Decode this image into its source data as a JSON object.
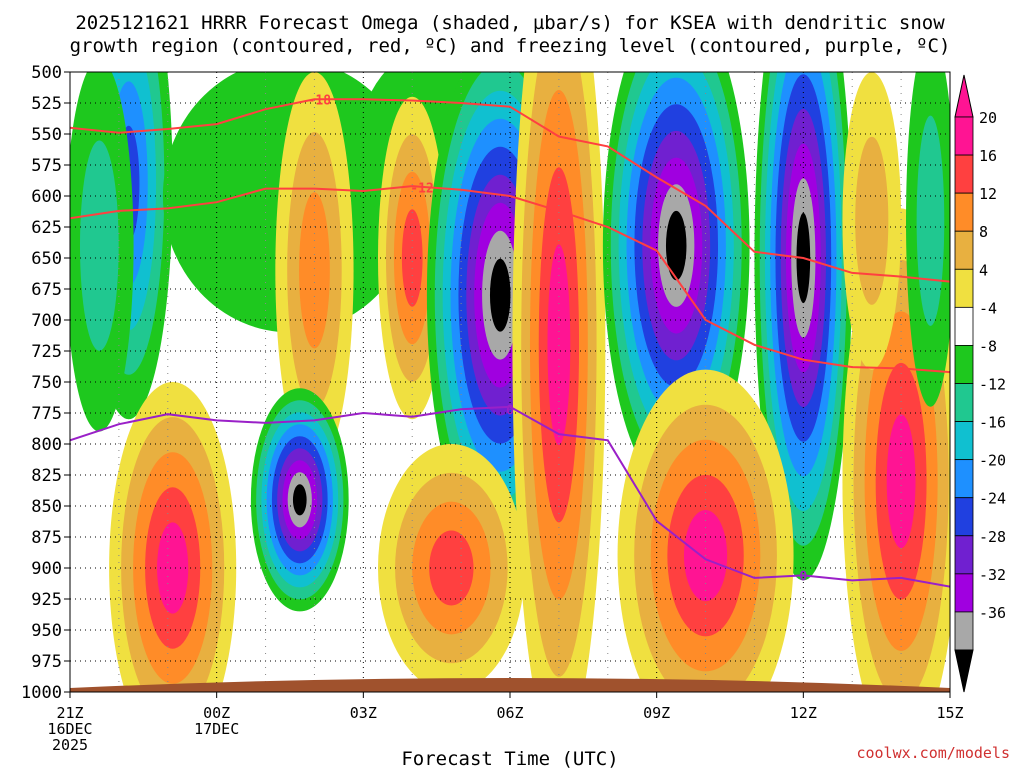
{
  "chart_data": {
    "type": "heatmap",
    "title_line1": "2025121621 HRRR Forecast Omega (shaded, µbar/s) for KSEA with dendritic snow",
    "title_line2": "growth region (contoured, red, ºC) and freezing level (contoured, purple, ºC)",
    "xlabel": "Forecast Time (UTC)",
    "credit": "coolwx.com/models",
    "x_ticks": [
      {
        "hour": 0,
        "label": [
          "21Z",
          "16DEC",
          "2025"
        ]
      },
      {
        "hour": 3,
        "label": [
          "00Z",
          "17DEC"
        ]
      },
      {
        "hour": 6,
        "label": [
          "03Z"
        ]
      },
      {
        "hour": 9,
        "label": [
          "06Z"
        ]
      },
      {
        "hour": 12,
        "label": [
          "09Z"
        ]
      },
      {
        "hour": 15,
        "label": [
          "12Z"
        ]
      },
      {
        "hour": 18,
        "label": [
          "15Z"
        ]
      }
    ],
    "xlim": [
      0,
      18
    ],
    "y_ticks": [
      "500",
      "525",
      "550",
      "575",
      "600",
      "625",
      "650",
      "675",
      "700",
      "725",
      "750",
      "775",
      "800",
      "825",
      "850",
      "875",
      "900",
      "925",
      "950",
      "975",
      "1000"
    ],
    "ylim": [
      500,
      1000
    ],
    "colorbar": {
      "levels": [
        {
          "label": "20",
          "color": "#ff1493"
        },
        {
          "label": "16",
          "color": "#ff4040"
        },
        {
          "label": "12",
          "color": "#ff8c28"
        },
        {
          "label": "8",
          "color": "#e8b040"
        },
        {
          "label": "4",
          "color": "#f0e040"
        },
        {
          "label": "-4",
          "color": "#ffffff"
        },
        {
          "label": "-8",
          "color": "#1ec81e"
        },
        {
          "label": "-12",
          "color": "#20c890"
        },
        {
          "label": "-16",
          "color": "#10c0d0"
        },
        {
          "label": "-20",
          "color": "#1e90ff"
        },
        {
          "label": "-24",
          "color": "#2040e0"
        },
        {
          "label": "-28",
          "color": "#7020d0"
        },
        {
          "label": "-32",
          "color": "#a000e0"
        },
        {
          "label": "-36",
          "color": "#a8a8a8"
        }
      ],
      "top_color": "#ff1493",
      "bottom_color": "#000000"
    },
    "series": [
      {
        "contour": "-18",
        "color": "#ff4040",
        "points": [
          [
            0,
            545
          ],
          [
            1,
            549
          ],
          [
            2,
            546
          ],
          [
            3,
            542
          ],
          [
            4,
            530
          ],
          [
            5,
            522
          ],
          [
            6,
            522
          ],
          [
            7,
            523
          ],
          [
            8,
            525
          ],
          [
            9,
            528
          ],
          [
            10,
            552
          ],
          [
            11,
            560
          ],
          [
            12,
            585
          ],
          [
            13,
            608
          ],
          [
            14,
            645
          ],
          [
            15,
            650
          ],
          [
            16,
            662
          ],
          [
            17,
            665
          ],
          [
            18,
            669
          ]
        ]
      },
      {
        "contour": "-12",
        "color": "#ff4040",
        "points": [
          [
            0,
            618
          ],
          [
            1,
            612
          ],
          [
            2,
            610
          ],
          [
            3,
            605
          ],
          [
            4,
            594
          ],
          [
            5,
            594
          ],
          [
            6,
            596
          ],
          [
            7,
            592
          ],
          [
            8,
            595
          ],
          [
            9,
            600
          ],
          [
            10,
            612
          ],
          [
            11,
            625
          ],
          [
            12,
            644
          ],
          [
            13,
            700
          ],
          [
            14,
            720
          ],
          [
            15,
            732
          ],
          [
            16,
            738
          ],
          [
            17,
            739
          ],
          [
            18,
            742
          ]
        ]
      },
      {
        "contour": "0",
        "color": "#9a20c8",
        "points": [
          [
            0,
            797
          ],
          [
            1,
            784
          ],
          [
            2,
            776
          ],
          [
            3,
            781
          ],
          [
            4,
            783
          ],
          [
            5,
            781
          ],
          [
            6,
            775
          ],
          [
            7,
            778
          ],
          [
            8,
            772
          ],
          [
            9,
            770
          ],
          [
            10,
            792
          ],
          [
            11,
            797
          ],
          [
            12,
            862
          ],
          [
            13,
            893
          ],
          [
            14,
            908
          ],
          [
            15,
            906
          ],
          [
            16,
            910
          ],
          [
            17,
            908
          ],
          [
            18,
            915
          ]
        ]
      }
    ],
    "contour_labels": [
      {
        "text": "-18",
        "hour": 5.1,
        "p": 522,
        "color": "#ff4040"
      },
      {
        "text": "-12",
        "hour": 7.2,
        "p": 593,
        "color": "#ff4040"
      },
      {
        "text": "0",
        "hour": 9.0,
        "p": 772,
        "color": "#9a20c8"
      },
      {
        "text": "0",
        "hour": 15.0,
        "p": 906,
        "color": "#9a20c8"
      }
    ],
    "omega_cells": [
      {
        "hour": 1.2,
        "p": 590,
        "rx": 0.9,
        "rp": 190,
        "levels": [
          "#1ec81e",
          "#20c890",
          "#10c0d0",
          "#1e90ff",
          "#2040e0"
        ]
      },
      {
        "hour": 0.6,
        "p": 640,
        "rx": 0.7,
        "rp": 150,
        "levels": [
          "#1ec81e",
          "#20c890"
        ]
      },
      {
        "hour": 4.5,
        "p": 600,
        "rx": 2.6,
        "rp": 110,
        "levels": [
          "#1ec81e"
        ]
      },
      {
        "hour": 7.5,
        "p": 560,
        "rx": 1.6,
        "rp": 80,
        "levels": [
          "#1ec81e"
        ]
      },
      {
        "hour": 2.1,
        "p": 900,
        "rx": 1.3,
        "rp": 150,
        "levels": [
          "#f0e040",
          "#e8b040",
          "#ff8c28",
          "#ff4040",
          "#ff1493"
        ]
      },
      {
        "hour": 5.0,
        "p": 660,
        "rx": 0.8,
        "rp": 160,
        "levels": [
          "#f0e040",
          "#e8b040",
          "#ff8c28"
        ]
      },
      {
        "hour": 7.0,
        "p": 650,
        "rx": 0.7,
        "rp": 130,
        "levels": [
          "#f0e040",
          "#e8b040",
          "#ff8c28",
          "#ff4040"
        ]
      },
      {
        "hour": 4.7,
        "p": 845,
        "rx": 1.0,
        "rp": 90,
        "levels": [
          "#1ec81e",
          "#20c890",
          "#10c0d0",
          "#1e90ff",
          "#2040e0",
          "#7020d0",
          "#a000e0",
          "#a8a8a8",
          "#000000"
        ]
      },
      {
        "hour": 8.8,
        "p": 680,
        "rx": 1.5,
        "rp": 210,
        "levels": [
          "#1ec81e",
          "#20c890",
          "#10c0d0",
          "#1e90ff",
          "#2040e0",
          "#7020d0",
          "#a000e0",
          "#a8a8a8",
          "#000000"
        ]
      },
      {
        "hour": 10.0,
        "p": 720,
        "rx": 0.95,
        "rp": 330,
        "levels": [
          "#f0e040",
          "#e8b040",
          "#ff8c28",
          "#ff4040",
          "#ff1493"
        ]
      },
      {
        "hour": 7.8,
        "p": 900,
        "rx": 1.5,
        "rp": 100,
        "levels": [
          "#f0e040",
          "#e8b040",
          "#ff8c28",
          "#ff4040"
        ]
      },
      {
        "hour": 12.4,
        "p": 640,
        "rx": 1.5,
        "rp": 200,
        "levels": [
          "#1ec81e",
          "#20c890",
          "#10c0d0",
          "#1e90ff",
          "#2040e0",
          "#7020d0",
          "#a000e0",
          "#a8a8a8",
          "#000000"
        ]
      },
      {
        "hour": 15.0,
        "p": 650,
        "rx": 1.0,
        "rp": 260,
        "levels": [
          "#1ec81e",
          "#20c890",
          "#10c0d0",
          "#1e90ff",
          "#2040e0",
          "#7020d0",
          "#a000e0",
          "#a8a8a8",
          "#000000"
        ]
      },
      {
        "hour": 13.0,
        "p": 890,
        "rx": 1.8,
        "rp": 150,
        "levels": [
          "#f0e040",
          "#e8b040",
          "#ff8c28",
          "#ff4040",
          "#ff1493"
        ]
      },
      {
        "hour": 17.0,
        "p": 830,
        "rx": 1.2,
        "rp": 220,
        "levels": [
          "#f0e040",
          "#e8b040",
          "#ff8c28",
          "#ff4040",
          "#ff1493"
        ]
      },
      {
        "hour": 16.4,
        "p": 620,
        "rx": 0.6,
        "rp": 120,
        "levels": [
          "#f0e040",
          "#e8b040"
        ]
      },
      {
        "hour": 17.6,
        "p": 620,
        "rx": 0.5,
        "rp": 150,
        "levels": [
          "#1ec81e",
          "#20c890"
        ]
      }
    ]
  }
}
